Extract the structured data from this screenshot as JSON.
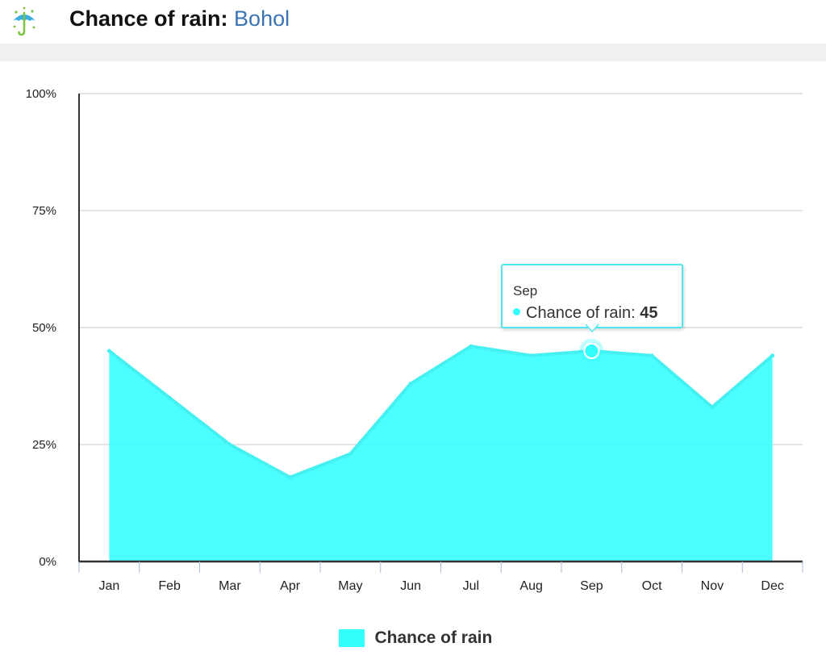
{
  "header": {
    "icon": "umbrella-rain-icon",
    "title_label": "Chance of rain:",
    "title_location": "Bohol"
  },
  "chart_data": {
    "type": "area",
    "title": "Chance of rain: Bohol",
    "categories": [
      "Jan",
      "Feb",
      "Mar",
      "Apr",
      "May",
      "Jun",
      "Jul",
      "Aug",
      "Sep",
      "Oct",
      "Nov",
      "Dec"
    ],
    "series": [
      {
        "name": "Chance of rain",
        "values": [
          45,
          35,
          25,
          18,
          23,
          38,
          46,
          44,
          45,
          44,
          33,
          44
        ],
        "color": "#33ffff"
      }
    ],
    "yticks": [
      "0%",
      "25%",
      "50%",
      "75%",
      "100%"
    ],
    "ylim": [
      0,
      100
    ],
    "grid": true,
    "legend": "bottom-center"
  },
  "tooltip": {
    "month": "Sep",
    "label": "Chance of rain:",
    "value": "45"
  },
  "legend": {
    "label": "Chance of rain"
  },
  "colors": {
    "area_fill": "#33ffff",
    "area_line": "#44f0f0",
    "grid": "#c8c8c8",
    "axis": "#333333",
    "title_location": "#3b74b4"
  }
}
